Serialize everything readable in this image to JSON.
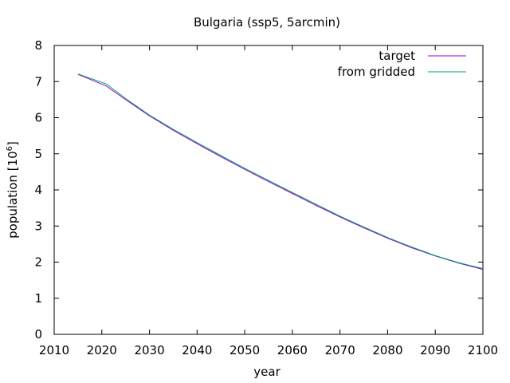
{
  "chart_data": {
    "type": "line",
    "title": "Bulgaria (ssp5, 5arcmin)",
    "xlabel": "year",
    "ylabel_text": "population [10",
    "ylabel_exponent": "6",
    "ylabel_close": "]",
    "xlim": [
      2010,
      2100
    ],
    "ylim": [
      0,
      8
    ],
    "xticks": [
      2010,
      2020,
      2030,
      2040,
      2050,
      2060,
      2070,
      2080,
      2090,
      2100
    ],
    "yticks": [
      0,
      1,
      2,
      3,
      4,
      5,
      6,
      7,
      8
    ],
    "grid": false,
    "legend_position": "top-right",
    "series": [
      {
        "name": "target",
        "color": "#9400d3",
        "x": [
          2015,
          2020,
          2021,
          2025,
          2030,
          2035,
          2040,
          2045,
          2050,
          2055,
          2060,
          2065,
          2070,
          2075,
          2080,
          2085,
          2090,
          2095,
          2100
        ],
        "y": [
          7.2,
          6.93,
          6.87,
          6.5,
          6.05,
          5.65,
          5.28,
          4.92,
          4.57,
          4.23,
          3.9,
          3.57,
          3.25,
          2.95,
          2.66,
          2.4,
          2.17,
          1.97,
          1.8
        ]
      },
      {
        "name": "from gridded",
        "color": "#009e73",
        "x": [
          2015,
          2020,
          2021,
          2025,
          2030,
          2035,
          2040,
          2045,
          2050,
          2055,
          2060,
          2065,
          2070,
          2075,
          2080,
          2085,
          2090,
          2095,
          2100
        ],
        "y": [
          7.21,
          6.98,
          6.93,
          6.53,
          6.07,
          5.68,
          5.31,
          4.95,
          4.6,
          4.26,
          3.93,
          3.6,
          3.27,
          2.97,
          2.68,
          2.42,
          2.18,
          1.98,
          1.82
        ]
      }
    ]
  }
}
